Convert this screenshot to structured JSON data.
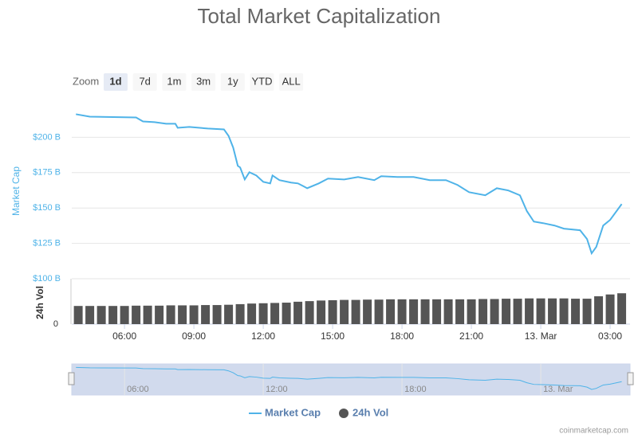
{
  "chart_data": {
    "type": "line",
    "title": "Total Market Capitalization",
    "range_selector": {
      "label": "Zoom",
      "buttons": [
        "1d",
        "7d",
        "1m",
        "3m",
        "1y",
        "YTD",
        "ALL"
      ],
      "selected": 0
    },
    "y_label": "Market Cap",
    "y2_label": "24h Vol",
    "credit": "coinmarketcap.com",
    "xlim": [
      3.72,
      27.86
    ],
    "xticks": [
      {
        "value": 6,
        "label": "06:00"
      },
      {
        "value": 9,
        "label": "09:00"
      },
      {
        "value": 12,
        "label": "12:00"
      },
      {
        "value": 15,
        "label": "15:00"
      },
      {
        "value": 18,
        "label": "18:00"
      },
      {
        "value": 21,
        "label": "21:00"
      },
      {
        "value": 24,
        "label": "13. Mar"
      },
      {
        "value": 27,
        "label": "03:00"
      }
    ],
    "ylim": [
      100,
      225
    ],
    "yticks": [
      {
        "value": 100,
        "label": "$100 B"
      },
      {
        "value": 125,
        "label": "$125 B"
      },
      {
        "value": 150,
        "label": "$150 B"
      },
      {
        "value": 175,
        "label": "$175 B"
      },
      {
        "value": 200,
        "label": "$200 B"
      }
    ],
    "y2lim": [
      0,
      150
    ],
    "y2ticks": [
      0
    ],
    "grid": true,
    "legend": "bottom",
    "series": [
      {
        "name": "Market Cap",
        "color": "#4fb3e8",
        "x": [
          3.9,
          4.5,
          6.5,
          6.8,
          7.3,
          7.8,
          8.2,
          8.3,
          8.8,
          9.6,
          10.3,
          10.5,
          10.7,
          10.9,
          11.0,
          11.2,
          11.4,
          11.7,
          12.0,
          12.3,
          12.4,
          12.7,
          13.2,
          13.5,
          13.9,
          14.4,
          14.8,
          15.5,
          16.1,
          16.8,
          17.1,
          17.8,
          18.5,
          19.2,
          19.9,
          20.4,
          20.9,
          21.6,
          22.1,
          22.6,
          23.1,
          23.4,
          23.7,
          24.1,
          24.6,
          25.0,
          25.7,
          26.0,
          26.2,
          26.4,
          26.7,
          27.0,
          27.5
        ],
        "values": [
          216.3,
          214.6,
          214.0,
          211.2,
          210.7,
          209.6,
          209.6,
          206.7,
          207.3,
          206.2,
          205.6,
          201.0,
          192.7,
          179.8,
          178.7,
          170.2,
          175.3,
          173.0,
          168.5,
          167.4,
          173.0,
          169.7,
          168.0,
          167.4,
          164.0,
          167.4,
          170.8,
          170.2,
          171.9,
          169.7,
          172.5,
          171.9,
          171.9,
          169.7,
          169.7,
          166.3,
          161.2,
          159.0,
          164.0,
          162.4,
          159.0,
          147.8,
          140.4,
          139.3,
          137.6,
          135.4,
          134.3,
          128.1,
          118.0,
          122.5,
          137.6,
          141.6,
          152.8
        ]
      },
      {
        "name": "24h Vol",
        "color": "#555555",
        "axis": "y2",
        "x": [
          4.0,
          4.5,
          5.0,
          5.5,
          6.0,
          6.5,
          7.0,
          7.5,
          8.0,
          8.5,
          9.0,
          9.5,
          10.0,
          10.5,
          11.0,
          11.5,
          12.0,
          12.5,
          13.0,
          13.5,
          14.0,
          14.5,
          15.0,
          15.5,
          16.0,
          16.5,
          17.0,
          17.5,
          18.0,
          18.5,
          19.0,
          19.5,
          20.0,
          20.5,
          21.0,
          21.5,
          22.0,
          22.5,
          23.0,
          23.5,
          24.0,
          24.5,
          25.0,
          25.5,
          26.0,
          26.5,
          27.0,
          27.5
        ],
        "values": [
          60,
          60,
          60,
          60,
          60,
          61,
          61,
          61,
          62,
          62,
          62,
          63,
          63,
          64,
          66,
          68,
          69,
          70,
          71,
          74,
          76,
          78,
          79,
          80,
          80,
          81,
          81,
          82,
          82,
          82,
          82,
          82,
          82,
          82,
          82,
          83,
          83,
          84,
          84,
          85,
          85,
          85,
          85,
          84,
          84,
          92,
          98,
          102
        ]
      }
    ]
  }
}
